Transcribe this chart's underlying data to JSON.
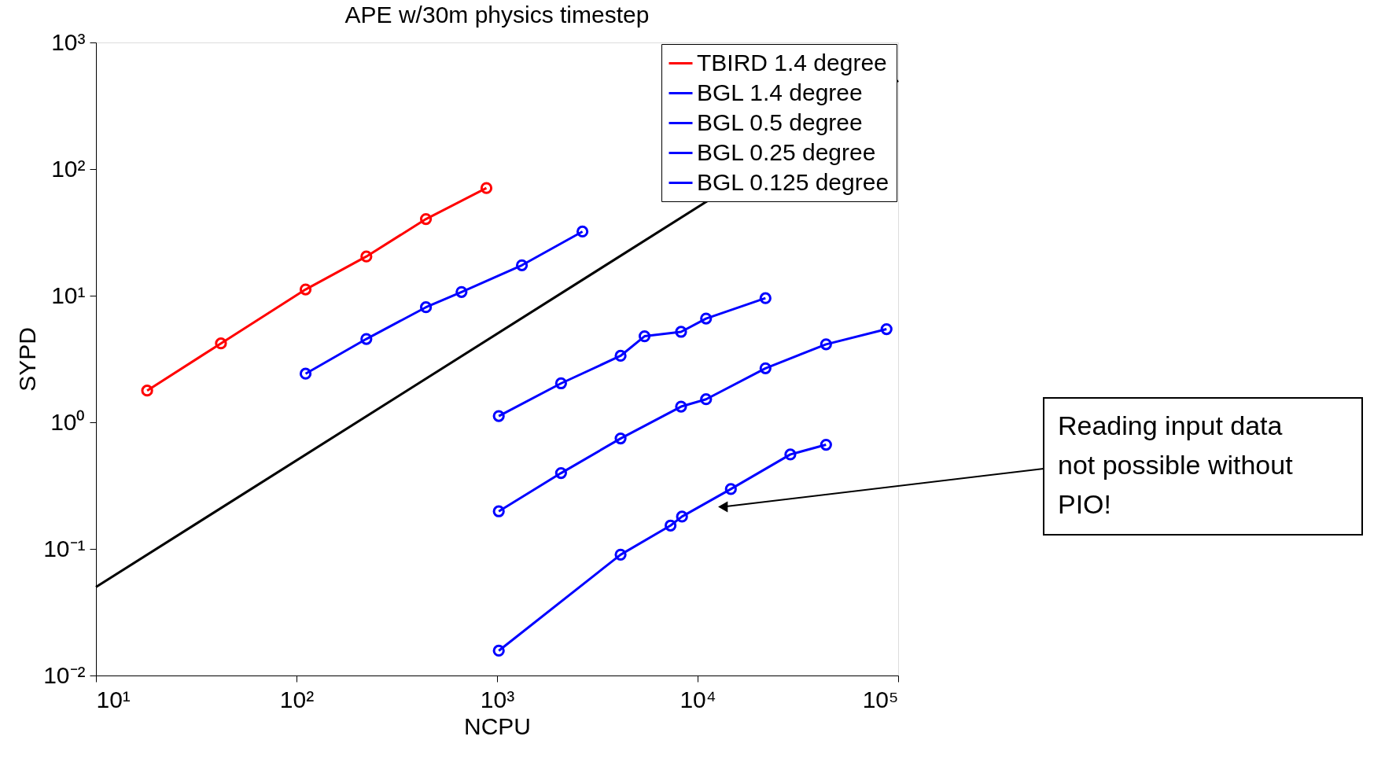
{
  "chart_data": {
    "type": "line",
    "title": "APE w/30m physics timestep",
    "xlabel": "NCPU",
    "ylabel": "SYPD",
    "log": "xy",
    "grid": false,
    "legend": "top right",
    "marker": "circle",
    "line_style": "solid",
    "xlim": [
      10,
      100000
    ],
    "ylim": [
      0.01,
      1000
    ],
    "xticks": [
      {
        "value": 10,
        "label": "10¹"
      },
      {
        "value": 100,
        "label": "10²"
      },
      {
        "value": 1000,
        "label": "10³"
      },
      {
        "value": 10000,
        "label": "10⁴"
      },
      {
        "value": 100000,
        "label": "10⁵"
      }
    ],
    "yticks": [
      {
        "value": 0.01,
        "label": "10⁻²"
      },
      {
        "value": 0.1,
        "label": "10⁻¹"
      },
      {
        "value": 1,
        "label": "10⁰"
      },
      {
        "value": 10,
        "label": "10¹"
      },
      {
        "value": 100,
        "label": "10²"
      },
      {
        "value": 1000,
        "label": "10³"
      }
    ],
    "series": [
      {
        "name": "TBIRD 1.4 degree",
        "color": "#ff0000",
        "x": [
          18,
          42,
          111,
          223,
          442,
          885
        ],
        "values": [
          1.78,
          4.2,
          11.2,
          20.4,
          40.3,
          70.8
        ]
      },
      {
        "name": "BGL 1.4 degree",
        "color": "#0000ff",
        "x": [
          111,
          223,
          442,
          665,
          1330,
          2666
        ],
        "values": [
          2.42,
          4.55,
          8.1,
          10.7,
          17.4,
          32.1
        ]
      },
      {
        "name": "BGL 0.5 degree",
        "color": "#0000ff",
        "x": [
          1020,
          2085,
          4130,
          5440,
          8270,
          11020,
          21800
        ],
        "values": [
          1.12,
          2.03,
          3.35,
          4.78,
          5.18,
          6.6,
          9.56
        ]
      },
      {
        "name": "BGL 0.25 degree",
        "color": "#0000ff",
        "x": [
          1020,
          2085,
          4130,
          8270,
          11020,
          21800,
          43700,
          87500
        ],
        "values": [
          0.198,
          0.397,
          0.745,
          1.33,
          1.52,
          2.67,
          4.13,
          5.44
        ]
      },
      {
        "name": "BGL 0.125 degree",
        "color": "#0000ff",
        "x": [
          1020,
          4130,
          7330,
          8360,
          14650,
          29000,
          43700
        ],
        "values": [
          0.0157,
          0.09,
          0.153,
          0.18,
          0.297,
          0.557,
          0.665
        ]
      },
      {
        "color": "#000000",
        "type": "line",
        "marker": "none",
        "x": [
          10,
          100000
        ],
        "values": [
          0.05,
          500
        ]
      }
    ],
    "annotations": [
      {
        "text": "Reading input data\nnot possible without\nPIO!",
        "x": 13370,
        "y": 0.215
      }
    ]
  }
}
